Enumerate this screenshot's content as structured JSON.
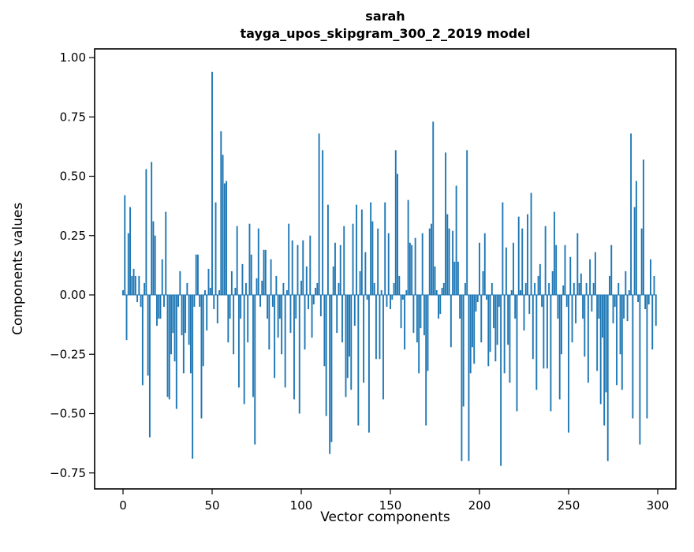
{
  "figure": {
    "title_line1": "sarah",
    "title_line2": "tayga_upos_skipgram_300_2_2019 model",
    "xlabel": "Vector components",
    "ylabel": "Components values"
  },
  "chart_data": {
    "type": "bar",
    "title": "sarah\ntayga_upos_skipgram_300_2_2019 model",
    "xlabel": "Vector components",
    "ylabel": "Components values",
    "bar_color": "#1f77b4",
    "axis_color": "#000000",
    "grid": false,
    "legend": "none",
    "n_components": 300,
    "xlim": [
      -16,
      310
    ],
    "ylim": [
      -0.82,
      1.04
    ],
    "x_ticks": [
      0,
      50,
      100,
      150,
      200,
      250,
      300
    ],
    "x_tick_labels": [
      "0",
      "50",
      "100",
      "150",
      "200",
      "250",
      "300"
    ],
    "y_ticks": [
      1.0,
      0.75,
      0.5,
      0.25,
      0.0,
      -0.25,
      -0.5,
      -0.75
    ],
    "y_tick_labels": [
      "1.00",
      "0.75",
      "0.50",
      "0.25",
      "0.00",
      "−0.25",
      "−0.50",
      "−0.75"
    ],
    "values": [
      0.02,
      0.42,
      -0.19,
      0.26,
      0.37,
      0.08,
      0.11,
      0.08,
      -0.03,
      0.08,
      -0.05,
      -0.38,
      0.05,
      0.53,
      -0.34,
      -0.6,
      0.56,
      0.31,
      0.25,
      -0.13,
      -0.1,
      -0.1,
      0.15,
      -0.05,
      0.35,
      -0.43,
      -0.44,
      -0.25,
      -0.16,
      -0.28,
      -0.48,
      -0.05,
      0.1,
      -0.17,
      -0.33,
      -0.16,
      0.05,
      -0.21,
      -0.33,
      -0.69,
      -0.05,
      0.17,
      0.17,
      -0.05,
      -0.52,
      -0.3,
      0.02,
      -0.15,
      0.11,
      0.03,
      0.94,
      -0.06,
      0.39,
      -0.12,
      0.02,
      0.69,
      0.59,
      0.47,
      0.48,
      -0.2,
      -0.1,
      0.1,
      -0.25,
      0.03,
      0.29,
      -0.39,
      -0.1,
      0.13,
      -0.46,
      0.05,
      -0.2,
      0.3,
      0.17,
      -0.43,
      -0.63,
      0.07,
      0.28,
      -0.05,
      0.06,
      0.19,
      0.19,
      -0.1,
      -0.23,
      0.15,
      -0.05,
      -0.35,
      0.08,
      -0.18,
      -0.1,
      -0.25,
      0.05,
      -0.39,
      0.02,
      0.3,
      -0.16,
      0.23,
      -0.44,
      -0.1,
      0.21,
      -0.5,
      0.06,
      0.23,
      -0.23,
      0.12,
      -0.06,
      0.25,
      -0.18,
      -0.04,
      0.03,
      0.05,
      0.68,
      -0.09,
      0.61,
      -0.3,
      -0.51,
      0.38,
      -0.67,
      -0.62,
      0.12,
      0.22,
      -0.16,
      0.05,
      0.21,
      -0.2,
      0.29,
      -0.43,
      -0.35,
      -0.26,
      -0.4,
      0.3,
      -0.13,
      0.38,
      -0.55,
      0.1,
      0.36,
      -0.37,
      0.18,
      -0.02,
      -0.58,
      0.39,
      0.31,
      0.05,
      -0.27,
      0.28,
      -0.27,
      0.02,
      -0.44,
      0.39,
      -0.05,
      0.26,
      -0.06,
      -0.02,
      0.05,
      0.61,
      0.51,
      0.08,
      -0.14,
      -0.02,
      -0.23,
      0.02,
      0.4,
      0.22,
      0.21,
      -0.16,
      0.24,
      -0.2,
      -0.33,
      -0.14,
      0.26,
      -0.17,
      -0.55,
      -0.32,
      0.28,
      0.3,
      0.73,
      0.12,
      0.02,
      -0.1,
      -0.08,
      0.03,
      0.05,
      0.6,
      0.34,
      0.28,
      -0.22,
      0.27,
      0.14,
      0.46,
      0.14,
      -0.1,
      -0.7,
      -0.47,
      0.05,
      0.61,
      -0.7,
      -0.33,
      -0.22,
      -0.29,
      -0.07,
      -0.03,
      0.22,
      -0.2,
      0.1,
      0.26,
      -0.02,
      -0.3,
      -0.24,
      0.05,
      -0.14,
      -0.28,
      -0.21,
      -0.05,
      -0.72,
      0.39,
      -0.33,
      0.2,
      -0.21,
      -0.37,
      0.02,
      0.22,
      -0.1,
      -0.49,
      0.33,
      0.02,
      0.28,
      -0.15,
      0.05,
      0.34,
      -0.08,
      0.43,
      -0.27,
      0.05,
      -0.4,
      0.08,
      0.13,
      -0.05,
      -0.31,
      0.29,
      -0.31,
      0.05,
      -0.49,
      0.1,
      0.35,
      0.21,
      -0.1,
      -0.44,
      -0.25,
      0.04,
      0.21,
      -0.05,
      -0.58,
      0.16,
      -0.2,
      0.05,
      -0.12,
      0.26,
      0.05,
      0.09,
      -0.1,
      -0.26,
      0.05,
      -0.37,
      0.15,
      -0.07,
      0.05,
      0.18,
      -0.32,
      -0.1,
      -0.46,
      -0.18,
      -0.55,
      -0.41,
      -0.7,
      0.08,
      0.21,
      -0.12,
      -0.05,
      -0.38,
      0.05,
      -0.25,
      -0.4,
      -0.1,
      0.1,
      -0.11,
      0.02,
      0.68,
      -0.52,
      0.37,
      0.48,
      -0.03,
      -0.63,
      0.28,
      0.57,
      -0.06,
      -0.52,
      -0.04,
      0.15,
      -0.23,
      0.08,
      -0.13
    ]
  }
}
